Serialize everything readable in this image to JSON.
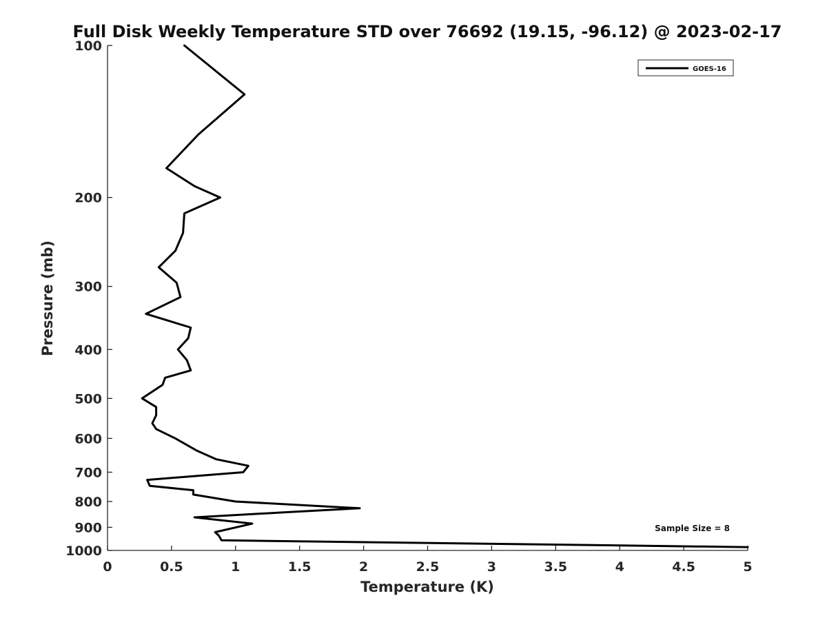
{
  "chart_data": {
    "type": "line",
    "title": "Full Disk Weekly Temperature STD over 76692 (19.15, -96.12) @ 2023-02-17",
    "xlabel": "Temperature (K)",
    "ylabel": "Pressure (mb)",
    "xlim": [
      0,
      5
    ],
    "ylim": [
      100,
      1000
    ],
    "y_scale": "log",
    "y_reversed": true,
    "x_ticks": [
      "0",
      "0.5",
      "1",
      "1.5",
      "2",
      "2.5",
      "3",
      "3.5",
      "4",
      "4.5",
      "5"
    ],
    "y_ticks": [
      "100",
      "200",
      "300",
      "400",
      "500",
      "600",
      "700",
      "800",
      "900",
      "1000"
    ],
    "grid": false,
    "legend": {
      "position": "top-right",
      "entries": [
        "GOES-16"
      ]
    },
    "annotations": [
      {
        "text": "Sample Size = 8",
        "position": "bottom-right"
      }
    ],
    "series": [
      {
        "name": "GOES-16",
        "color": "#000000",
        "points": [
          [
            0.6,
            100
          ],
          [
            1.07,
            125
          ],
          [
            0.71,
            150
          ],
          [
            0.46,
            175
          ],
          [
            0.68,
            190
          ],
          [
            0.88,
            200
          ],
          [
            0.6,
            215
          ],
          [
            0.59,
            235
          ],
          [
            0.53,
            255
          ],
          [
            0.4,
            275
          ],
          [
            0.54,
            295
          ],
          [
            0.57,
            315
          ],
          [
            0.3,
            340
          ],
          [
            0.65,
            362
          ],
          [
            0.63,
            380
          ],
          [
            0.55,
            400
          ],
          [
            0.62,
            420
          ],
          [
            0.65,
            440
          ],
          [
            0.45,
            455
          ],
          [
            0.43,
            470
          ],
          [
            0.27,
            500
          ],
          [
            0.38,
            520
          ],
          [
            0.38,
            540
          ],
          [
            0.35,
            560
          ],
          [
            0.38,
            575
          ],
          [
            0.53,
            600
          ],
          [
            0.7,
            635
          ],
          [
            0.85,
            660
          ],
          [
            1.1,
            680
          ],
          [
            1.06,
            700
          ],
          [
            0.31,
            725
          ],
          [
            0.33,
            745
          ],
          [
            0.67,
            760
          ],
          [
            0.67,
            775
          ],
          [
            1.0,
            800
          ],
          [
            1.97,
            825
          ],
          [
            1.4,
            840
          ],
          [
            0.68,
            860
          ],
          [
            1.13,
            885
          ],
          [
            0.84,
            920
          ],
          [
            0.87,
            935
          ],
          [
            0.89,
            955
          ],
          [
            5.0,
            985
          ]
        ]
      }
    ]
  }
}
